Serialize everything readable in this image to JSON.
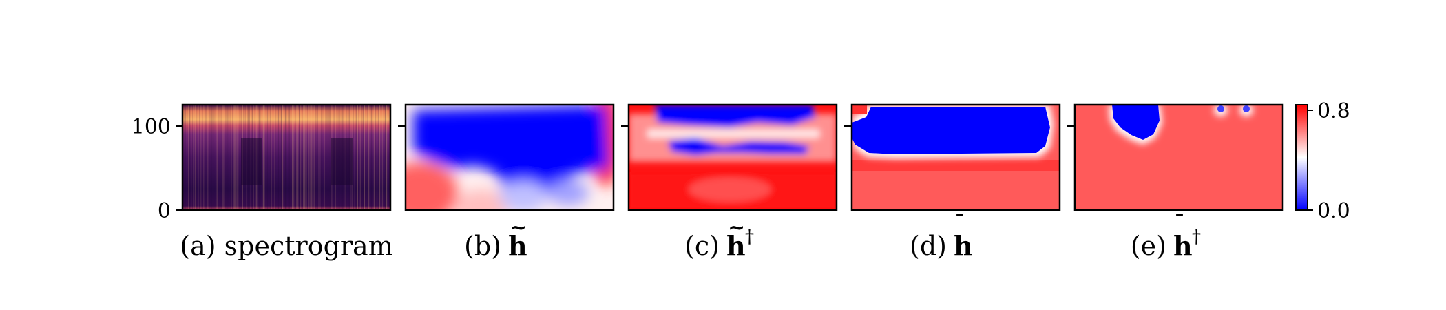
{
  "chart_data": {
    "type": "heatmap",
    "panels": [
      {
        "id": "a",
        "caption_prefix": "(a)",
        "caption_body": "spectrogram",
        "caption_symbol": "",
        "caption_accent": "",
        "caption_superscript": ""
      },
      {
        "id": "b",
        "caption_prefix": "(b)",
        "caption_body": "",
        "caption_symbol": "h",
        "caption_accent": "~",
        "caption_superscript": ""
      },
      {
        "id": "c",
        "caption_prefix": "(c)",
        "caption_body": "",
        "caption_symbol": "h",
        "caption_accent": "~",
        "caption_superscript": "†"
      },
      {
        "id": "d",
        "caption_prefix": "(d)",
        "caption_body": "",
        "caption_symbol": "h",
        "caption_accent": "¯",
        "caption_superscript": ""
      },
      {
        "id": "e",
        "caption_prefix": "(e)",
        "caption_body": "",
        "caption_symbol": "h",
        "caption_accent": "¯",
        "caption_superscript": "†"
      }
    ],
    "y_axis": {
      "ticks": [
        0,
        100
      ],
      "tick_labels": [
        "0",
        "100"
      ],
      "range": [
        0,
        128
      ]
    },
    "colorbar": {
      "range": [
        0.0,
        0.8
      ],
      "tick_labels": [
        "0.8",
        "0.0"
      ],
      "colormap": "bwr"
    },
    "colors": {
      "red": "#ff0000",
      "light_red": "#ff5a5a",
      "blue": "#0000ff",
      "white": "#ffffff",
      "spectrogram_dark": "#2a0a40",
      "spectrogram_mid": "#8a2a78",
      "spectrogram_bright": "#f4a060"
    }
  }
}
